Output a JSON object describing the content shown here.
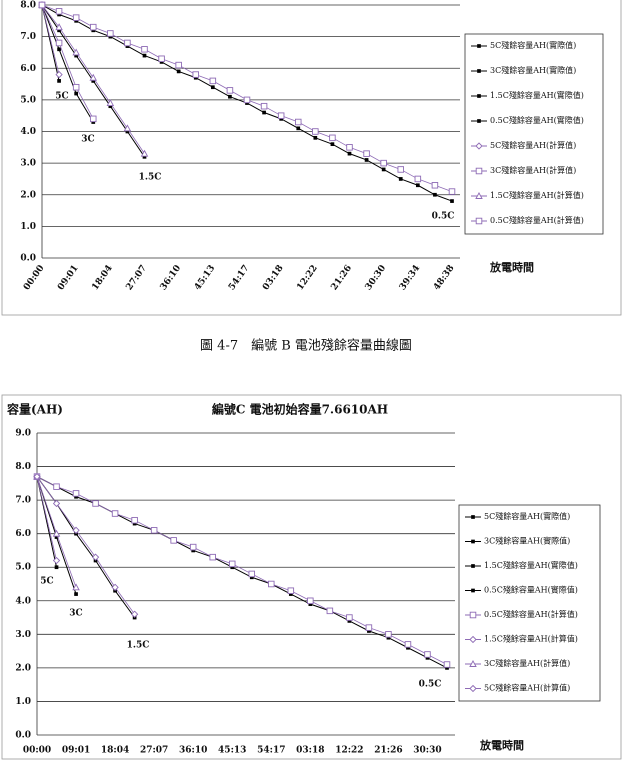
{
  "caption": "圖 4-7　編號 B 電池殘餘容量曲線圖",
  "chart_data": [
    {
      "type": "line",
      "x_label": "放電時間",
      "categories": [
        "00:00",
        null,
        "09:01",
        null,
        "18:04",
        null,
        "27:07",
        null,
        "36:10",
        null,
        "45:13",
        null,
        "54:17",
        null,
        "03:18",
        null,
        "12:22",
        null,
        "21:26",
        null,
        "30:30",
        null,
        "39:34",
        null,
        "48:38"
      ],
      "ylim": [
        0,
        8
      ],
      "yticks": [
        {
          "value": 0,
          "label": "0.0"
        },
        {
          "value": 1,
          "label": "1.0"
        },
        {
          "value": 2,
          "label": "2.0"
        },
        {
          "value": 3,
          "label": "3.0"
        },
        {
          "value": 4,
          "label": "4.0"
        },
        {
          "value": 5,
          "label": "5.0"
        },
        {
          "value": 6,
          "label": "6.0"
        },
        {
          "value": 7,
          "label": "7.0"
        },
        {
          "value": 8,
          "label": "8.0"
        }
      ],
      "grid": true,
      "annotations": [
        "5C",
        "3C",
        "1.5C",
        "0.5C"
      ],
      "series": [
        {
          "name": "5C殘餘容量AH(實際值)",
          "color": "#000000",
          "marker": "square",
          "values": [
            8.0,
            5.6,
            null,
            null,
            null,
            null,
            null,
            null,
            null,
            null,
            null,
            null,
            null,
            null,
            null,
            null,
            null,
            null,
            null,
            null,
            null,
            null,
            null,
            null,
            null
          ]
        },
        {
          "name": "3C殘餘容量AH(實際值)",
          "color": "#000000",
          "marker": "square",
          "values": [
            8.0,
            6.6,
            5.2,
            4.3,
            null,
            null,
            null,
            null,
            null,
            null,
            null,
            null,
            null,
            null,
            null,
            null,
            null,
            null,
            null,
            null,
            null,
            null,
            null,
            null,
            null
          ]
        },
        {
          "name": "1.5C殘餘容量AH(實際值)",
          "color": "#000000",
          "marker": "square",
          "values": [
            8.0,
            7.2,
            6.4,
            5.6,
            4.8,
            4.0,
            3.2,
            null,
            null,
            null,
            null,
            null,
            null,
            null,
            null,
            null,
            null,
            null,
            null,
            null,
            null,
            null,
            null,
            null,
            null
          ]
        },
        {
          "name": "0.5C殘餘容量AH(實際值)",
          "color": "#000000",
          "marker": "square",
          "values": [
            8.0,
            7.7,
            7.5,
            7.2,
            7.0,
            6.7,
            6.4,
            6.2,
            5.9,
            5.7,
            5.4,
            5.1,
            4.9,
            4.6,
            4.4,
            4.1,
            3.8,
            3.6,
            3.3,
            3.1,
            2.8,
            2.5,
            2.3,
            2.0,
            1.8
          ]
        },
        {
          "name": "5C殘餘容量AH(計算值)",
          "color": "#8e6bb5",
          "marker": "diamond",
          "values": [
            8.0,
            5.8,
            null,
            null,
            null,
            null,
            null,
            null,
            null,
            null,
            null,
            null,
            null,
            null,
            null,
            null,
            null,
            null,
            null,
            null,
            null,
            null,
            null,
            null,
            null
          ]
        },
        {
          "name": "3C殘餘容量AH(計算值)",
          "color": "#8e6bb5",
          "marker": "square",
          "values": [
            8.0,
            6.8,
            5.4,
            4.4,
            null,
            null,
            null,
            null,
            null,
            null,
            null,
            null,
            null,
            null,
            null,
            null,
            null,
            null,
            null,
            null,
            null,
            null,
            null,
            null,
            null
          ]
        },
        {
          "name": "1.5C殘餘容量AH(計算值)",
          "color": "#8e6bb5",
          "marker": "triangle",
          "values": [
            8.0,
            7.3,
            6.5,
            5.7,
            4.9,
            4.1,
            3.3,
            null,
            null,
            null,
            null,
            null,
            null,
            null,
            null,
            null,
            null,
            null,
            null,
            null,
            null,
            null,
            null,
            null,
            null
          ]
        },
        {
          "name": "0.5C殘餘容量AH(計算值)",
          "color": "#8e6bb5",
          "marker": "square",
          "values": [
            8.0,
            7.8,
            7.6,
            7.3,
            7.1,
            6.8,
            6.6,
            6.3,
            6.1,
            5.8,
            5.6,
            5.3,
            5.0,
            4.8,
            4.5,
            4.3,
            4.0,
            3.8,
            3.5,
            3.3,
            3.0,
            2.8,
            2.5,
            2.3,
            2.1
          ]
        }
      ]
    },
    {
      "type": "line",
      "title": "編號C 電池初始容量7.6610AH",
      "y_label": "容量(AH)",
      "x_label": "放電時間",
      "categories": [
        "00:00",
        null,
        "09:01",
        null,
        "18:04",
        null,
        "27:07",
        null,
        "36:10",
        null,
        "45:13",
        null,
        "54:17",
        null,
        "03:18",
        null,
        "12:22",
        null,
        "21:26",
        null,
        "30:30",
        null
      ],
      "ylim": [
        0,
        9
      ],
      "yticks": [
        {
          "value": 0,
          "label": "0.0"
        },
        {
          "value": 1,
          "label": "1.0"
        },
        {
          "value": 2,
          "label": "2.0"
        },
        {
          "value": 3,
          "label": "3.0"
        },
        {
          "value": 4,
          "label": "4.0"
        },
        {
          "value": 5,
          "label": "5.0"
        },
        {
          "value": 6,
          "label": "6.0"
        },
        {
          "value": 7,
          "label": "7.0"
        },
        {
          "value": 8,
          "label": "8.0"
        },
        {
          "value": 9,
          "label": "9.0"
        }
      ],
      "grid": true,
      "annotations": [
        "5C",
        "3C",
        "1.5C",
        "0.5C"
      ],
      "series": [
        {
          "name": "5C殘餘容量AH(實際值)",
          "color": "#000000",
          "marker": "square",
          "values": [
            7.7,
            5.0,
            null,
            null,
            null,
            null,
            null,
            null,
            null,
            null,
            null,
            null,
            null,
            null,
            null,
            null,
            null,
            null,
            null,
            null,
            null,
            null
          ]
        },
        {
          "name": "3C殘餘容量AH(實際值)",
          "color": "#000000",
          "marker": "square",
          "values": [
            7.7,
            5.9,
            4.2,
            null,
            null,
            null,
            null,
            null,
            null,
            null,
            null,
            null,
            null,
            null,
            null,
            null,
            null,
            null,
            null,
            null,
            null,
            null
          ]
        },
        {
          "name": "1.5C殘餘容量AH(實際值)",
          "color": "#000000",
          "marker": "square",
          "values": [
            7.7,
            6.9,
            6.0,
            5.2,
            4.3,
            3.5,
            null,
            null,
            null,
            null,
            null,
            null,
            null,
            null,
            null,
            null,
            null,
            null,
            null,
            null,
            null,
            null
          ]
        },
        {
          "name": "0.5C殘餘容量AH(實際值)",
          "color": "#000000",
          "marker": "square",
          "values": [
            7.7,
            7.4,
            7.1,
            6.9,
            6.6,
            6.3,
            6.1,
            5.8,
            5.5,
            5.3,
            5.0,
            4.7,
            4.5,
            4.2,
            3.9,
            3.7,
            3.4,
            3.1,
            2.9,
            2.6,
            2.3,
            2.0
          ]
        },
        {
          "name": "0.5C殘餘容量AH(計算值)",
          "color": "#8e6bb5",
          "marker": "square",
          "values": [
            7.7,
            7.4,
            7.2,
            6.9,
            6.6,
            6.4,
            6.1,
            5.8,
            5.6,
            5.3,
            5.1,
            4.8,
            4.5,
            4.3,
            4.0,
            3.7,
            3.5,
            3.2,
            3.0,
            2.7,
            2.4,
            2.1
          ]
        },
        {
          "name": "1.5C殘餘容量AH(計算值)",
          "color": "#8e6bb5",
          "marker": "diamond",
          "values": [
            7.7,
            6.9,
            6.1,
            5.3,
            4.4,
            3.6,
            null,
            null,
            null,
            null,
            null,
            null,
            null,
            null,
            null,
            null,
            null,
            null,
            null,
            null,
            null,
            null
          ]
        },
        {
          "name": "3C殘餘容量AH(計算值)",
          "color": "#8e6bb5",
          "marker": "triangle",
          "values": [
            7.7,
            6.0,
            4.4,
            null,
            null,
            null,
            null,
            null,
            null,
            null,
            null,
            null,
            null,
            null,
            null,
            null,
            null,
            null,
            null,
            null,
            null,
            null
          ]
        },
        {
          "name": "5C殘餘容量AH(計算值)",
          "color": "#8e6bb5",
          "marker": "diamond",
          "values": [
            7.7,
            5.2,
            null,
            null,
            null,
            null,
            null,
            null,
            null,
            null,
            null,
            null,
            null,
            null,
            null,
            null,
            null,
            null,
            null,
            null,
            null,
            null
          ]
        }
      ]
    }
  ]
}
